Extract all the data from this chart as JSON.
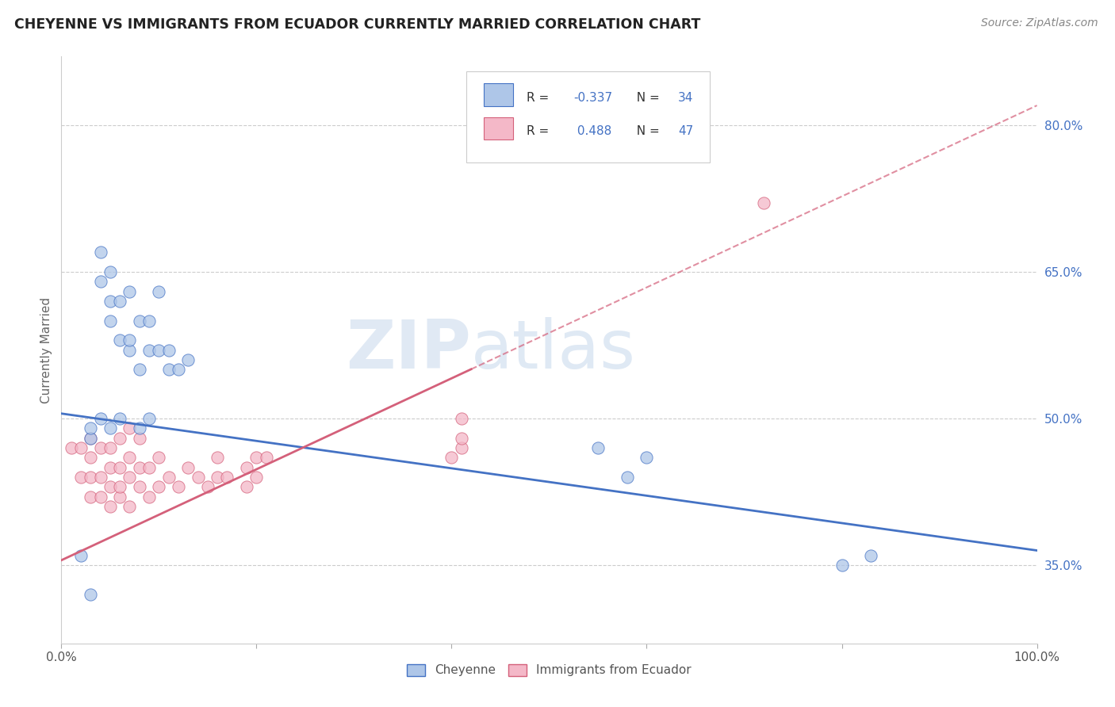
{
  "title": "CHEYENNE VS IMMIGRANTS FROM ECUADOR CURRENTLY MARRIED CORRELATION CHART",
  "source_text": "Source: ZipAtlas.com",
  "ylabel": "Currently Married",
  "legend_label1": "Cheyenne",
  "legend_label2": "Immigrants from Ecuador",
  "R1": -0.337,
  "N1": 34,
  "R2": 0.488,
  "N2": 47,
  "color1": "#aec6e8",
  "color2": "#f4b8c8",
  "line_color1": "#4472c4",
  "line_color2": "#d4607a",
  "watermark_zip": "ZIP",
  "watermark_atlas": "atlas",
  "xlim": [
    0.0,
    1.0
  ],
  "ylim": [
    0.27,
    0.87
  ],
  "xticks": [
    0.0,
    0.2,
    0.4,
    0.6,
    0.8,
    1.0
  ],
  "yticks": [
    0.35,
    0.5,
    0.65,
    0.8
  ],
  "ytick_labels_right": [
    "35.0%",
    "50.0%",
    "65.0%",
    "80.0%"
  ],
  "cheyenne_x": [
    0.02,
    0.03,
    0.04,
    0.04,
    0.05,
    0.05,
    0.05,
    0.06,
    0.06,
    0.07,
    0.07,
    0.07,
    0.08,
    0.08,
    0.09,
    0.09,
    0.1,
    0.1,
    0.11,
    0.11,
    0.12,
    0.13,
    0.55,
    0.58,
    0.6,
    0.8,
    0.83,
    0.03,
    0.03,
    0.04,
    0.05,
    0.06,
    0.08,
    0.09
  ],
  "cheyenne_y": [
    0.36,
    0.32,
    0.64,
    0.67,
    0.6,
    0.62,
    0.65,
    0.58,
    0.62,
    0.57,
    0.58,
    0.63,
    0.55,
    0.6,
    0.57,
    0.6,
    0.57,
    0.63,
    0.55,
    0.57,
    0.55,
    0.56,
    0.47,
    0.44,
    0.46,
    0.35,
    0.36,
    0.48,
    0.49,
    0.5,
    0.49,
    0.5,
    0.49,
    0.5
  ],
  "ecuador_x": [
    0.01,
    0.02,
    0.02,
    0.03,
    0.03,
    0.03,
    0.03,
    0.04,
    0.04,
    0.04,
    0.05,
    0.05,
    0.05,
    0.05,
    0.06,
    0.06,
    0.06,
    0.06,
    0.07,
    0.07,
    0.07,
    0.07,
    0.08,
    0.08,
    0.08,
    0.09,
    0.09,
    0.1,
    0.1,
    0.11,
    0.12,
    0.13,
    0.14,
    0.15,
    0.16,
    0.16,
    0.17,
    0.19,
    0.19,
    0.2,
    0.2,
    0.21,
    0.4,
    0.41,
    0.41,
    0.41,
    0.72
  ],
  "ecuador_y": [
    0.47,
    0.44,
    0.47,
    0.42,
    0.44,
    0.46,
    0.48,
    0.42,
    0.44,
    0.47,
    0.41,
    0.43,
    0.45,
    0.47,
    0.42,
    0.43,
    0.45,
    0.48,
    0.41,
    0.44,
    0.46,
    0.49,
    0.43,
    0.45,
    0.48,
    0.42,
    0.45,
    0.43,
    0.46,
    0.44,
    0.43,
    0.45,
    0.44,
    0.43,
    0.44,
    0.46,
    0.44,
    0.43,
    0.45,
    0.44,
    0.46,
    0.46,
    0.46,
    0.47,
    0.48,
    0.5,
    0.72
  ]
}
